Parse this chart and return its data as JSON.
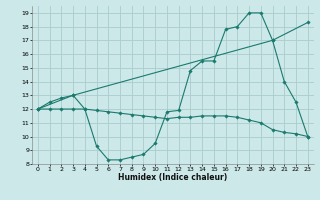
{
  "xlabel": "Humidex (Indice chaleur)",
  "bg_color": "#cce8e8",
  "grid_color": "#aacccc",
  "line_color": "#1a7a6e",
  "xlim": [
    -0.5,
    23.5
  ],
  "ylim": [
    8,
    19.5
  ],
  "xticks": [
    0,
    1,
    2,
    3,
    4,
    5,
    6,
    7,
    8,
    9,
    10,
    11,
    12,
    13,
    14,
    15,
    16,
    17,
    18,
    19,
    20,
    21,
    22,
    23
  ],
  "yticks": [
    8,
    9,
    10,
    11,
    12,
    13,
    14,
    15,
    16,
    17,
    18,
    19
  ],
  "series": [
    {
      "x": [
        0,
        3,
        20,
        23
      ],
      "y": [
        12.0,
        13.0,
        17.0,
        18.3
      ]
    },
    {
      "x": [
        0,
        1,
        2,
        3,
        4,
        5,
        6,
        7,
        8,
        9,
        10,
        11,
        12,
        13,
        14,
        15,
        16,
        17,
        18,
        19,
        20,
        21,
        22,
        23
      ],
      "y": [
        12.0,
        12.5,
        12.8,
        13.0,
        12.0,
        9.3,
        8.3,
        8.3,
        8.5,
        8.7,
        9.5,
        11.8,
        11.9,
        14.8,
        15.5,
        15.5,
        17.8,
        18.0,
        19.0,
        19.0,
        17.0,
        14.0,
        12.5,
        10.0
      ]
    },
    {
      "x": [
        0,
        1,
        2,
        3,
        4,
        5,
        6,
        7,
        8,
        9,
        10,
        11,
        12,
        13,
        14,
        15,
        16,
        17,
        18,
        19,
        20,
        21,
        22,
        23
      ],
      "y": [
        12.0,
        12.0,
        12.0,
        12.0,
        12.0,
        11.9,
        11.8,
        11.7,
        11.6,
        11.5,
        11.4,
        11.3,
        11.4,
        11.4,
        11.5,
        11.5,
        11.5,
        11.4,
        11.2,
        11.0,
        10.5,
        10.3,
        10.2,
        10.0
      ]
    }
  ]
}
